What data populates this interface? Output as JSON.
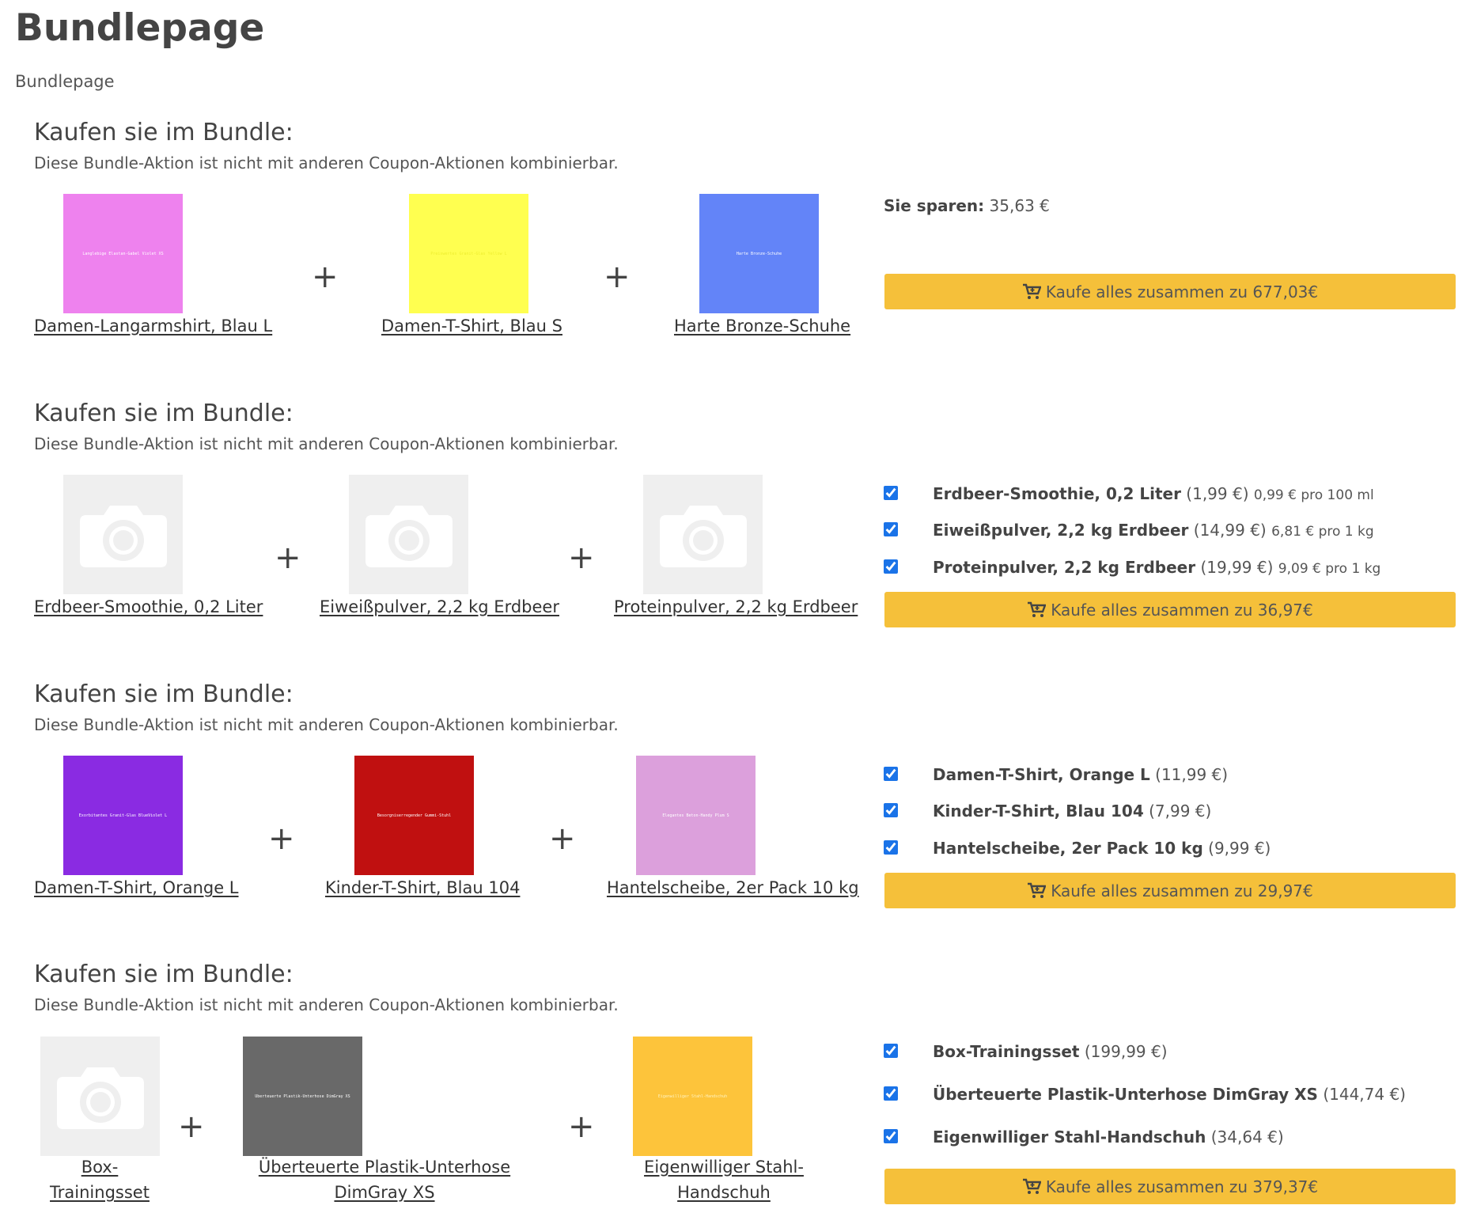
{
  "page": {
    "title": "Bundlepage",
    "breadcrumb": "Bundlepage"
  },
  "colors": {
    "button": "#f5c03a",
    "checkbox": "#1a73e8",
    "placeholder": "#efefef"
  },
  "bundles": [
    {
      "heading": "Kaufen sie im Bundle:",
      "description": "Diese Bundle-Aktion ist nicht mit anderen Coupon-Aktionen kombinierbar.",
      "products": [
        {
          "name": "Damen-Langarmshirt, Blau L",
          "thumb_label": "Langlebige Elastan-Gabel Violet XS",
          "color": "#ee82ee"
        },
        {
          "name": "Damen-T-Shirt, Blau S",
          "thumb_label": "Preiswertes Granit-Glas Yellow L",
          "color": "#ffff50"
        },
        {
          "name": "Harte Bronze-Schuhe",
          "thumb_label": "Harte Bronze-Schuhe",
          "color": "#6384f8"
        }
      ],
      "plus": "+",
      "savings_label": "Sie sparen:",
      "savings_value": "35,63 €",
      "button_label": "Kaufe alles zusammen zu 677,03€"
    },
    {
      "heading": "Kaufen sie im Bundle:",
      "description": "Diese Bundle-Aktion ist nicht mit anderen Coupon-Aktionen kombinierbar.",
      "products": [
        {
          "name": "Erdbeer-Smoothie, 0,2 Liter",
          "placeholder_icon": "camera-icon"
        },
        {
          "name": "Eiweißpulver, 2,2 kg Erdbeer",
          "placeholder_icon": "camera-icon"
        },
        {
          "name": "Proteinpulver, 2,2 kg Erdbeer",
          "placeholder_icon": "camera-icon"
        }
      ],
      "plus": "+",
      "items": [
        {
          "name": "Erdbeer-Smoothie, 0,2 Liter",
          "price": "(1,99 €)",
          "unit": "0,99 € pro 100 ml",
          "checked": true
        },
        {
          "name": "Eiweißpulver, 2,2 kg Erdbeer",
          "price": "(14,99 €)",
          "unit": "6,81 € pro 1 kg",
          "checked": true
        },
        {
          "name": "Proteinpulver, 2,2 kg Erdbeer",
          "price": "(19,99 €)",
          "unit": "9,09 € pro 1 kg",
          "checked": true
        }
      ],
      "button_label": "Kaufe alles zusammen zu 36,97€"
    },
    {
      "heading": "Kaufen sie im Bundle:",
      "description": "Diese Bundle-Aktion ist nicht mit anderen Coupon-Aktionen kombinierbar.",
      "products": [
        {
          "name": "Damen-T-Shirt, Orange L",
          "thumb_label": "Exorbitantes Granit-Glas BlueViolet L",
          "color": "#8a2be2"
        },
        {
          "name": "Kinder-T-Shirt, Blau 104",
          "thumb_label": "Besorgniserregender Gummi-Stuhl",
          "color": "#c01010"
        },
        {
          "name": "Hantelscheibe, 2er Pack 10 kg",
          "thumb_label": "Elegantes Beton-Handy Plum S",
          "color": "#dca0dc"
        }
      ],
      "plus": "+",
      "items": [
        {
          "name": "Damen-T-Shirt, Orange L",
          "price": "(11,99 €)",
          "checked": true
        },
        {
          "name": "Kinder-T-Shirt, Blau 104",
          "price": "(7,99 €)",
          "checked": true
        },
        {
          "name": "Hantelscheibe, 2er Pack 10 kg",
          "price": "(9,99 €)",
          "checked": true
        }
      ],
      "button_label": "Kaufe alles zusammen zu 29,97€"
    },
    {
      "heading": "Kaufen sie im Bundle:",
      "description": "Diese Bundle-Aktion ist nicht mit anderen Coupon-Aktionen kombinierbar.",
      "products": [
        {
          "name": "Box-Trainingsset",
          "placeholder_icon": "camera-icon"
        },
        {
          "name": "Überteuerte Plastik-Unterhose DimGray XS",
          "thumb_label": "Überteuerte Plastik-Unterhose DimGray XS",
          "color": "#696969"
        },
        {
          "name": "Eigenwilliger Stahl-Handschuh",
          "thumb_label": "Eigenwilliger Stahl-Handschuh",
          "color": "#fdc43b"
        }
      ],
      "plus": "+",
      "items": [
        {
          "name": "Box-Trainingsset",
          "price": "(199,99 €)",
          "checked": true
        },
        {
          "name": "Überteuerte Plastik-Unterhose DimGray XS",
          "price": "(144,74 €)",
          "checked": true
        },
        {
          "name": "Eigenwilliger Stahl-Handschuh",
          "price": "(34,64 €)",
          "checked": true
        }
      ],
      "button_label": "Kaufe alles zusammen zu 379,37€"
    }
  ]
}
